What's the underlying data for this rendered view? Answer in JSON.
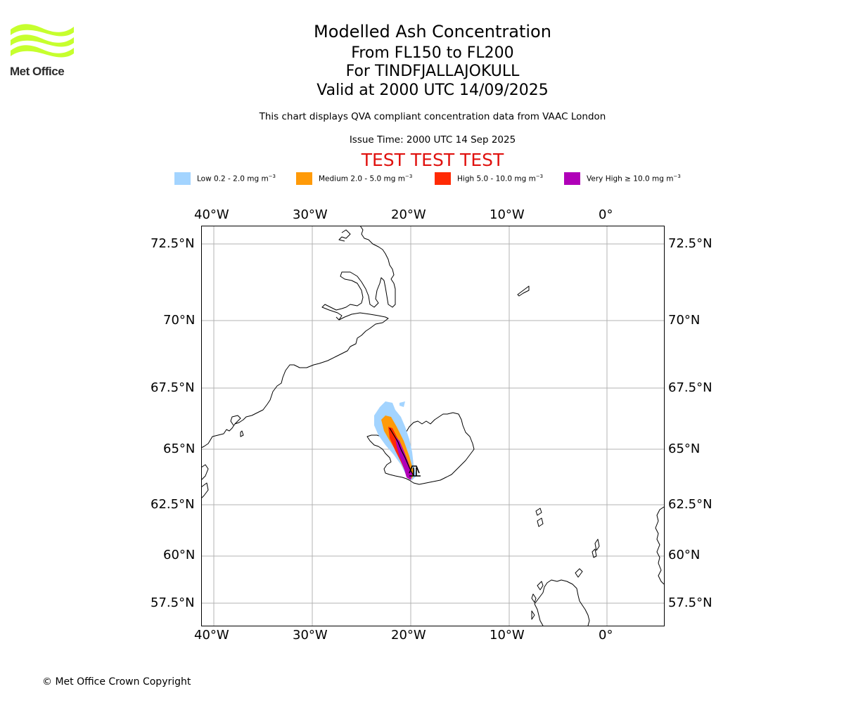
{
  "logo": {
    "name": "Met Office",
    "brand_color": "#c6ff2e",
    "text_color": "#2b2b2b"
  },
  "header": {
    "title": "Modelled Ash Concentration",
    "levels": "From FL150 to FL200",
    "volcano": "For TINDFJALLAJOKULL",
    "valid": "Valid at 2000 UTC 14/09/2025",
    "description": "This chart displays QVA compliant concentration data from VAAC London",
    "issue_time": "Issue Time: 2000 UTC 14 Sep 2025",
    "test_banner": "TEST TEST TEST",
    "test_color": "#e0120f"
  },
  "legend": [
    {
      "label": "Low 0.2 - 2.0 mg m",
      "color": "#a3d4ff"
    },
    {
      "label": "Medium 2.0 - 5.0 mg m",
      "color": "#ff9a08"
    },
    {
      "label": "High 5.0 - 10.0 mg m",
      "color": "#ff2a05"
    },
    {
      "label": "Very High ≥ 10.0 mg m",
      "color": "#b000b8"
    }
  ],
  "legend_unit_exponent": "−3",
  "map": {
    "lon_ticks": [
      "40°W",
      "30°W",
      "20°W",
      "10°W",
      "0°"
    ],
    "lat_ticks": [
      "72.5°N",
      "70°N",
      "67.5°N",
      "65°N",
      "62.5°N",
      "60°N",
      "57.5°N"
    ],
    "projection": "stereographic",
    "grid": true
  },
  "footer": {
    "copyright": "© Met Office Crown Copyright"
  }
}
